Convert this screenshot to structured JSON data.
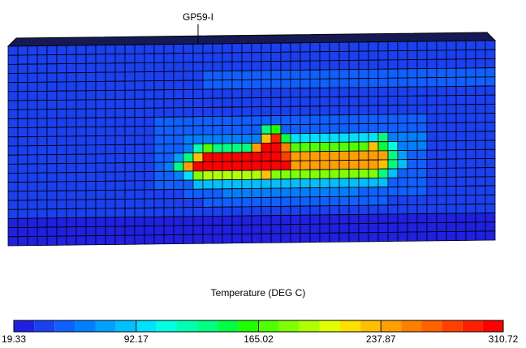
{
  "probe": {
    "label": "GP59-I"
  },
  "colorbar": {
    "title": "Temperature (DEG C)",
    "ticks": [
      19.33,
      92.17,
      165.02,
      237.87,
      310.72
    ],
    "colors": [
      "#2020e0",
      "#1a40f0",
      "#1060ff",
      "#0080ff",
      "#00a0ff",
      "#00c0ff",
      "#00e0ff",
      "#00ffe0",
      "#00ffb0",
      "#00ff80",
      "#00ff40",
      "#20ff00",
      "#50ff00",
      "#80ff00",
      "#b0ff00",
      "#e0ff00",
      "#ffe000",
      "#ffc000",
      "#ffa000",
      "#ff8000",
      "#ff6000",
      "#ff4000",
      "#ff2000",
      "#ff0000"
    ]
  },
  "field": {
    "rows": [
      [
        40,
        40,
        40,
        40,
        40,
        40,
        40,
        40,
        40,
        40,
        40,
        40,
        40,
        40,
        40,
        40,
        40,
        40,
        40,
        40,
        40,
        40,
        40,
        40,
        40,
        40,
        40,
        40,
        40,
        40,
        40,
        40,
        40,
        40,
        40,
        40,
        40,
        40,
        40,
        40,
        40,
        40,
        40,
        40,
        40,
        40,
        40,
        40,
        40,
        40
      ],
      [
        40,
        40,
        40,
        40,
        40,
        40,
        40,
        40,
        40,
        40,
        40,
        40,
        40,
        40,
        40,
        40,
        40,
        40,
        40,
        40,
        40,
        40,
        40,
        40,
        40,
        40,
        40,
        40,
        40,
        40,
        40,
        40,
        40,
        40,
        40,
        40,
        40,
        40,
        40,
        40,
        40,
        40,
        40,
        40,
        40,
        40,
        40,
        40,
        40,
        40
      ],
      [
        40,
        40,
        40,
        40,
        40,
        40,
        40,
        40,
        40,
        40,
        40,
        40,
        40,
        40,
        40,
        40,
        40,
        40,
        40,
        40,
        40,
        40,
        40,
        40,
        40,
        40,
        40,
        40,
        40,
        40,
        40,
        40,
        40,
        40,
        40,
        40,
        40,
        40,
        40,
        40,
        40,
        40,
        40,
        40,
        40,
        40,
        40,
        40,
        40,
        40
      ],
      [
        40,
        40,
        40,
        40,
        40,
        40,
        40,
        40,
        40,
        40,
        40,
        40,
        40,
        40,
        40,
        40,
        40,
        40,
        40,
        40,
        48,
        48,
        48,
        48,
        48,
        48,
        48,
        48,
        48,
        48,
        48,
        48,
        48,
        48,
        48,
        48,
        48,
        48,
        48,
        48,
        48,
        48,
        48,
        48,
        48,
        48,
        48,
        48,
        48,
        48
      ],
      [
        40,
        40,
        40,
        40,
        40,
        40,
        40,
        40,
        40,
        40,
        40,
        40,
        40,
        40,
        40,
        40,
        40,
        40,
        40,
        40,
        48,
        48,
        48,
        48,
        48,
        48,
        48,
        48,
        48,
        48,
        48,
        48,
        48,
        48,
        48,
        48,
        48,
        48,
        48,
        48,
        48,
        48,
        48,
        48,
        48,
        48,
        48,
        48,
        48,
        48
      ],
      [
        40,
        40,
        40,
        40,
        40,
        40,
        40,
        40,
        40,
        40,
        40,
        40,
        40,
        40,
        40,
        40,
        40,
        40,
        40,
        40,
        40,
        40,
        40,
        40,
        40,
        40,
        40,
        40,
        40,
        40,
        40,
        40,
        40,
        40,
        40,
        40,
        40,
        40,
        40,
        40,
        40,
        40,
        40,
        40,
        40,
        40,
        40,
        40,
        40,
        40
      ],
      [
        40,
        40,
        40,
        40,
        40,
        40,
        40,
        40,
        40,
        40,
        40,
        40,
        40,
        40,
        40,
        40,
        40,
        40,
        40,
        40,
        40,
        40,
        40,
        40,
        40,
        40,
        40,
        40,
        40,
        40,
        40,
        40,
        40,
        40,
        40,
        40,
        40,
        40,
        40,
        40,
        40,
        40,
        40,
        40,
        40,
        40,
        40,
        40,
        40,
        40
      ],
      [
        40,
        40,
        40,
        40,
        40,
        40,
        40,
        40,
        40,
        40,
        40,
        40,
        40,
        40,
        40,
        40,
        40,
        40,
        40,
        40,
        40,
        40,
        40,
        40,
        40,
        40,
        40,
        40,
        40,
        40,
        40,
        40,
        40,
        40,
        40,
        40,
        40,
        40,
        40,
        40,
        40,
        40,
        40,
        40,
        40,
        40,
        40,
        40,
        40,
        40
      ],
      [
        40,
        40,
        40,
        40,
        40,
        40,
        40,
        40,
        40,
        40,
        40,
        40,
        40,
        40,
        40,
        48,
        48,
        48,
        48,
        48,
        48,
        48,
        48,
        48,
        48,
        48,
        48,
        48,
        48,
        48,
        48,
        48,
        48,
        48,
        48,
        48,
        48,
        48,
        48,
        48,
        48,
        48,
        48,
        40,
        40,
        40,
        40,
        40,
        40,
        40
      ],
      [
        40,
        40,
        40,
        40,
        40,
        40,
        40,
        40,
        40,
        40,
        40,
        40,
        40,
        40,
        40,
        48,
        48,
        48,
        48,
        48,
        48,
        48,
        48,
        48,
        48,
        48,
        140,
        160,
        48,
        48,
        48,
        48,
        48,
        48,
        48,
        48,
        48,
        48,
        48,
        48,
        48,
        48,
        48,
        40,
        40,
        40,
        40,
        40,
        40,
        40
      ],
      [
        40,
        40,
        40,
        40,
        40,
        40,
        40,
        40,
        40,
        40,
        40,
        40,
        40,
        40,
        40,
        48,
        48,
        48,
        60,
        60,
        60,
        60,
        60,
        60,
        60,
        60,
        230,
        290,
        150,
        95,
        95,
        95,
        95,
        95,
        95,
        95,
        95,
        95,
        140,
        60,
        60,
        60,
        60,
        40,
        40,
        40,
        40,
        40,
        40,
        40
      ],
      [
        40,
        40,
        40,
        40,
        40,
        40,
        40,
        40,
        40,
        40,
        40,
        40,
        40,
        40,
        40,
        48,
        48,
        48,
        60,
        120,
        170,
        140,
        140,
        140,
        140,
        250,
        300,
        300,
        260,
        170,
        170,
        170,
        170,
        170,
        170,
        170,
        170,
        230,
        150,
        110,
        60,
        60,
        60,
        40,
        40,
        40,
        40,
        40,
        40,
        40
      ],
      [
        40,
        40,
        40,
        40,
        40,
        40,
        40,
        40,
        40,
        40,
        40,
        40,
        40,
        40,
        40,
        48,
        48,
        70,
        130,
        230,
        300,
        300,
        300,
        300,
        300,
        300,
        300,
        300,
        280,
        250,
        250,
        250,
        250,
        250,
        250,
        250,
        250,
        250,
        240,
        130,
        80,
        48,
        48,
        40,
        40,
        40,
        40,
        40,
        40,
        40
      ],
      [
        40,
        40,
        40,
        40,
        40,
        40,
        40,
        40,
        40,
        40,
        40,
        40,
        40,
        40,
        40,
        48,
        60,
        140,
        240,
        300,
        300,
        300,
        300,
        300,
        300,
        300,
        300,
        300,
        300,
        250,
        250,
        250,
        250,
        250,
        250,
        250,
        250,
        250,
        230,
        140,
        90,
        48,
        48,
        40,
        40,
        40,
        40,
        40,
        40,
        40
      ],
      [
        40,
        40,
        40,
        40,
        40,
        40,
        40,
        40,
        40,
        40,
        40,
        40,
        40,
        40,
        40,
        48,
        48,
        60,
        100,
        180,
        200,
        200,
        200,
        200,
        200,
        200,
        230,
        180,
        180,
        180,
        180,
        180,
        180,
        180,
        180,
        180,
        180,
        180,
        130,
        90,
        48,
        48,
        48,
        40,
        40,
        40,
        40,
        40,
        40,
        40
      ],
      [
        40,
        40,
        40,
        40,
        40,
        40,
        40,
        40,
        40,
        40,
        40,
        40,
        40,
        40,
        40,
        48,
        48,
        48,
        48,
        85,
        85,
        85,
        85,
        85,
        85,
        85,
        85,
        85,
        85,
        85,
        85,
        85,
        85,
        85,
        85,
        85,
        85,
        85,
        85,
        48,
        48,
        48,
        48,
        40,
        40,
        40,
        40,
        40,
        40,
        40
      ],
      [
        40,
        40,
        40,
        40,
        40,
        40,
        40,
        40,
        40,
        40,
        40,
        40,
        40,
        40,
        40,
        40,
        40,
        40,
        48,
        48,
        48,
        48,
        62,
        62,
        62,
        62,
        62,
        62,
        62,
        62,
        62,
        62,
        62,
        62,
        62,
        62,
        48,
        48,
        48,
        48,
        48,
        48,
        48,
        40,
        40,
        40,
        40,
        40,
        40,
        40
      ],
      [
        40,
        40,
        40,
        40,
        40,
        40,
        40,
        40,
        40,
        40,
        40,
        40,
        40,
        40,
        40,
        40,
        40,
        40,
        40,
        40,
        48,
        48,
        48,
        48,
        48,
        48,
        48,
        48,
        48,
        48,
        48,
        48,
        48,
        48,
        48,
        48,
        48,
        48,
        48,
        40,
        40,
        40,
        40,
        40,
        40,
        40,
        40,
        40,
        40,
        40
      ],
      [
        40,
        40,
        40,
        40,
        40,
        40,
        40,
        40,
        40,
        40,
        40,
        40,
        40,
        40,
        40,
        40,
        40,
        40,
        40,
        40,
        40,
        40,
        40,
        40,
        40,
        40,
        40,
        40,
        40,
        40,
        40,
        40,
        40,
        40,
        40,
        40,
        40,
        40,
        40,
        40,
        40,
        40,
        40,
        40,
        40,
        40,
        40,
        40,
        40,
        40
      ],
      [
        28,
        28,
        28,
        28,
        28,
        28,
        28,
        28,
        28,
        28,
        28,
        28,
        28,
        28,
        28,
        28,
        28,
        28,
        28,
        28,
        28,
        28,
        28,
        28,
        28,
        28,
        28,
        28,
        28,
        28,
        28,
        28,
        28,
        28,
        28,
        28,
        28,
        28,
        28,
        28,
        28,
        28,
        28,
        28,
        28,
        28,
        28,
        28,
        28,
        28
      ],
      [
        28,
        28,
        28,
        28,
        28,
        28,
        28,
        28,
        28,
        28,
        28,
        28,
        28,
        28,
        28,
        28,
        28,
        28,
        28,
        28,
        28,
        28,
        28,
        28,
        28,
        28,
        28,
        28,
        28,
        28,
        28,
        28,
        28,
        28,
        28,
        28,
        28,
        28,
        28,
        28,
        28,
        28,
        28,
        28,
        28,
        28,
        28,
        28,
        28,
        28
      ],
      [
        28,
        28,
        28,
        28,
        28,
        28,
        28,
        28,
        28,
        28,
        28,
        28,
        28,
        28,
        28,
        28,
        28,
        28,
        28,
        28,
        28,
        28,
        28,
        28,
        28,
        28,
        28,
        28,
        28,
        28,
        28,
        28,
        28,
        28,
        28,
        28,
        28,
        28,
        28,
        28,
        28,
        28,
        28,
        28,
        28,
        28,
        28,
        28,
        28,
        28
      ]
    ]
  }
}
